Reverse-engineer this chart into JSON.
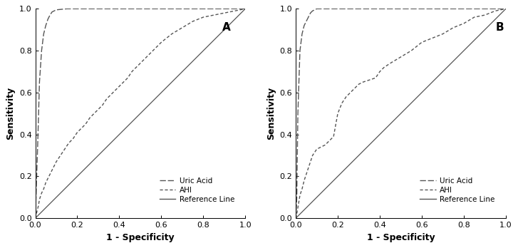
{
  "panel_A_label": "A",
  "panel_B_label": "B",
  "xlabel": "1 - Specificity",
  "ylabel": "Sensitivity",
  "xlim": [
    0,
    1.0
  ],
  "ylim": [
    0,
    1.0
  ],
  "xticks": [
    0,
    0.2,
    0.4,
    0.6,
    0.8,
    1.0
  ],
  "yticks": [
    0.0,
    0.2,
    0.4,
    0.6,
    0.8,
    1.0
  ],
  "legend_labels": [
    "Uric Acid",
    "AHI",
    "Reference Line"
  ],
  "line_color": "#555555",
  "background_color": "#ffffff",
  "A_uric_acid_x": [
    0,
    0.01,
    0.02,
    0.03,
    0.04,
    0.05,
    0.06,
    0.07,
    0.08,
    0.1,
    0.15,
    0.2,
    0.3,
    0.4,
    0.5,
    0.6,
    0.7,
    0.8,
    0.9,
    0.95,
    1.0
  ],
  "A_uric_acid_y": [
    0,
    0.3,
    0.65,
    0.8,
    0.88,
    0.92,
    0.95,
    0.97,
    0.985,
    0.995,
    1.0,
    1.0,
    1.0,
    1.0,
    1.0,
    1.0,
    1.0,
    1.0,
    1.0,
    1.0,
    1.0
  ],
  "A_ahi_x": [
    0,
    0.005,
    0.01,
    0.015,
    0.02,
    0.03,
    0.04,
    0.05,
    0.06,
    0.07,
    0.08,
    0.09,
    0.1,
    0.12,
    0.14,
    0.16,
    0.18,
    0.2,
    0.22,
    0.24,
    0.26,
    0.28,
    0.3,
    0.32,
    0.34,
    0.36,
    0.38,
    0.4,
    0.42,
    0.44,
    0.46,
    0.48,
    0.5,
    0.55,
    0.6,
    0.65,
    0.7,
    0.75,
    0.8,
    0.85,
    0.9,
    0.95,
    1.0
  ],
  "A_ahi_y": [
    0,
    0.02,
    0.04,
    0.06,
    0.09,
    0.12,
    0.14,
    0.17,
    0.19,
    0.21,
    0.23,
    0.25,
    0.27,
    0.3,
    0.33,
    0.36,
    0.38,
    0.41,
    0.43,
    0.45,
    0.48,
    0.5,
    0.52,
    0.54,
    0.57,
    0.59,
    0.61,
    0.63,
    0.65,
    0.67,
    0.7,
    0.72,
    0.74,
    0.79,
    0.84,
    0.88,
    0.91,
    0.94,
    0.96,
    0.97,
    0.98,
    0.99,
    1.0
  ],
  "B_uric_acid_x": [
    0,
    0.005,
    0.01,
    0.02,
    0.03,
    0.04,
    0.05,
    0.06,
    0.07,
    0.08,
    0.1,
    0.15,
    0.2,
    0.3,
    0.4,
    0.5,
    0.6,
    0.7,
    0.8,
    0.9,
    0.95,
    1.0
  ],
  "B_uric_acid_y": [
    0,
    0.1,
    0.5,
    0.8,
    0.88,
    0.92,
    0.94,
    0.96,
    0.98,
    0.99,
    1.0,
    1.0,
    1.0,
    1.0,
    1.0,
    1.0,
    1.0,
    1.0,
    1.0,
    1.0,
    1.0,
    1.0
  ],
  "B_ahi_x": [
    0,
    0.005,
    0.01,
    0.015,
    0.02,
    0.03,
    0.04,
    0.05,
    0.06,
    0.07,
    0.08,
    0.1,
    0.12,
    0.14,
    0.16,
    0.18,
    0.2,
    0.22,
    0.24,
    0.26,
    0.28,
    0.3,
    0.32,
    0.35,
    0.38,
    0.4,
    0.42,
    0.45,
    0.5,
    0.55,
    0.6,
    0.65,
    0.7,
    0.75,
    0.8,
    0.85,
    0.9,
    0.95,
    1.0
  ],
  "B_ahi_y": [
    0,
    0.02,
    0.05,
    0.08,
    0.11,
    0.14,
    0.18,
    0.21,
    0.24,
    0.27,
    0.3,
    0.33,
    0.34,
    0.35,
    0.37,
    0.39,
    0.5,
    0.55,
    0.58,
    0.6,
    0.62,
    0.64,
    0.65,
    0.66,
    0.67,
    0.7,
    0.72,
    0.74,
    0.77,
    0.8,
    0.84,
    0.86,
    0.88,
    0.91,
    0.93,
    0.96,
    0.97,
    0.99,
    1.0
  ]
}
